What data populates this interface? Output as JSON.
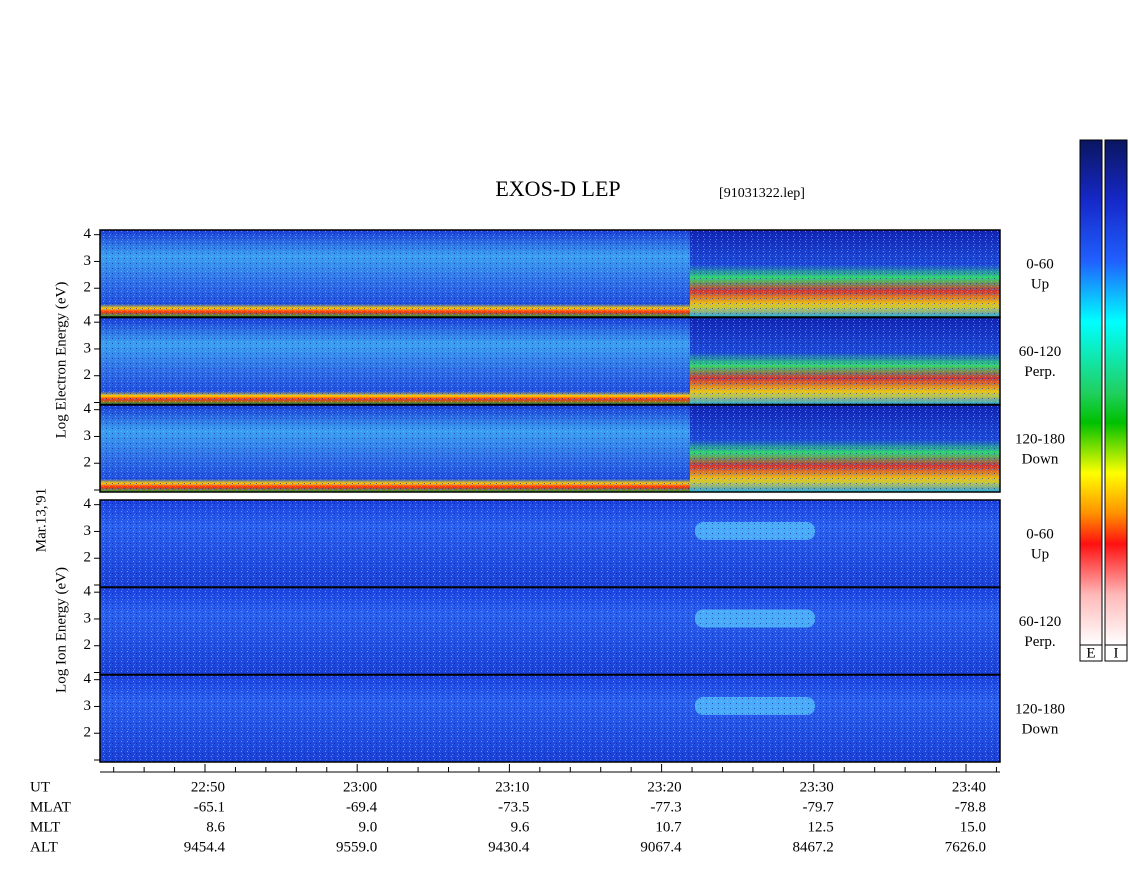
{
  "title": "EXOS-D LEP",
  "file": "[91031322.lep]",
  "date": "Mar.13,'91",
  "electron": {
    "axis_label": "Log Electron Energy (eV)",
    "yticks": [
      "2",
      "3",
      "4"
    ],
    "panels": [
      {
        "angle": "0-60",
        "direction": "Up"
      },
      {
        "angle": "60-120",
        "direction": "Perp."
      },
      {
        "angle": "120-180",
        "direction": "Down"
      }
    ]
  },
  "ion": {
    "axis_label": "Log Ion Energy (eV)",
    "yticks": [
      "2",
      "3",
      "4"
    ],
    "panels": [
      {
        "angle": "0-60",
        "direction": "Up"
      },
      {
        "angle": "60-120",
        "direction": "Perp."
      },
      {
        "angle": "120-180",
        "direction": "Down"
      }
    ]
  },
  "orbit_table": {
    "row_labels": [
      "UT",
      "MLAT",
      "MLT",
      "ALT"
    ],
    "columns": [
      [
        "22:50",
        "-65.1",
        "8.6",
        "9454.4"
      ],
      [
        "23:00",
        "-69.4",
        "9.0",
        "9559.0"
      ],
      [
        "23:10",
        "-73.5",
        "9.6",
        "9430.4"
      ],
      [
        "23:20",
        "-77.3",
        "10.7",
        "9067.4"
      ],
      [
        "23:30",
        "-79.7",
        "12.5",
        "8467.2"
      ],
      [
        "23:40",
        "-78.8",
        "15.0",
        "7626.0"
      ]
    ]
  },
  "colorbar_labels": [
    "E",
    "I"
  ]
}
